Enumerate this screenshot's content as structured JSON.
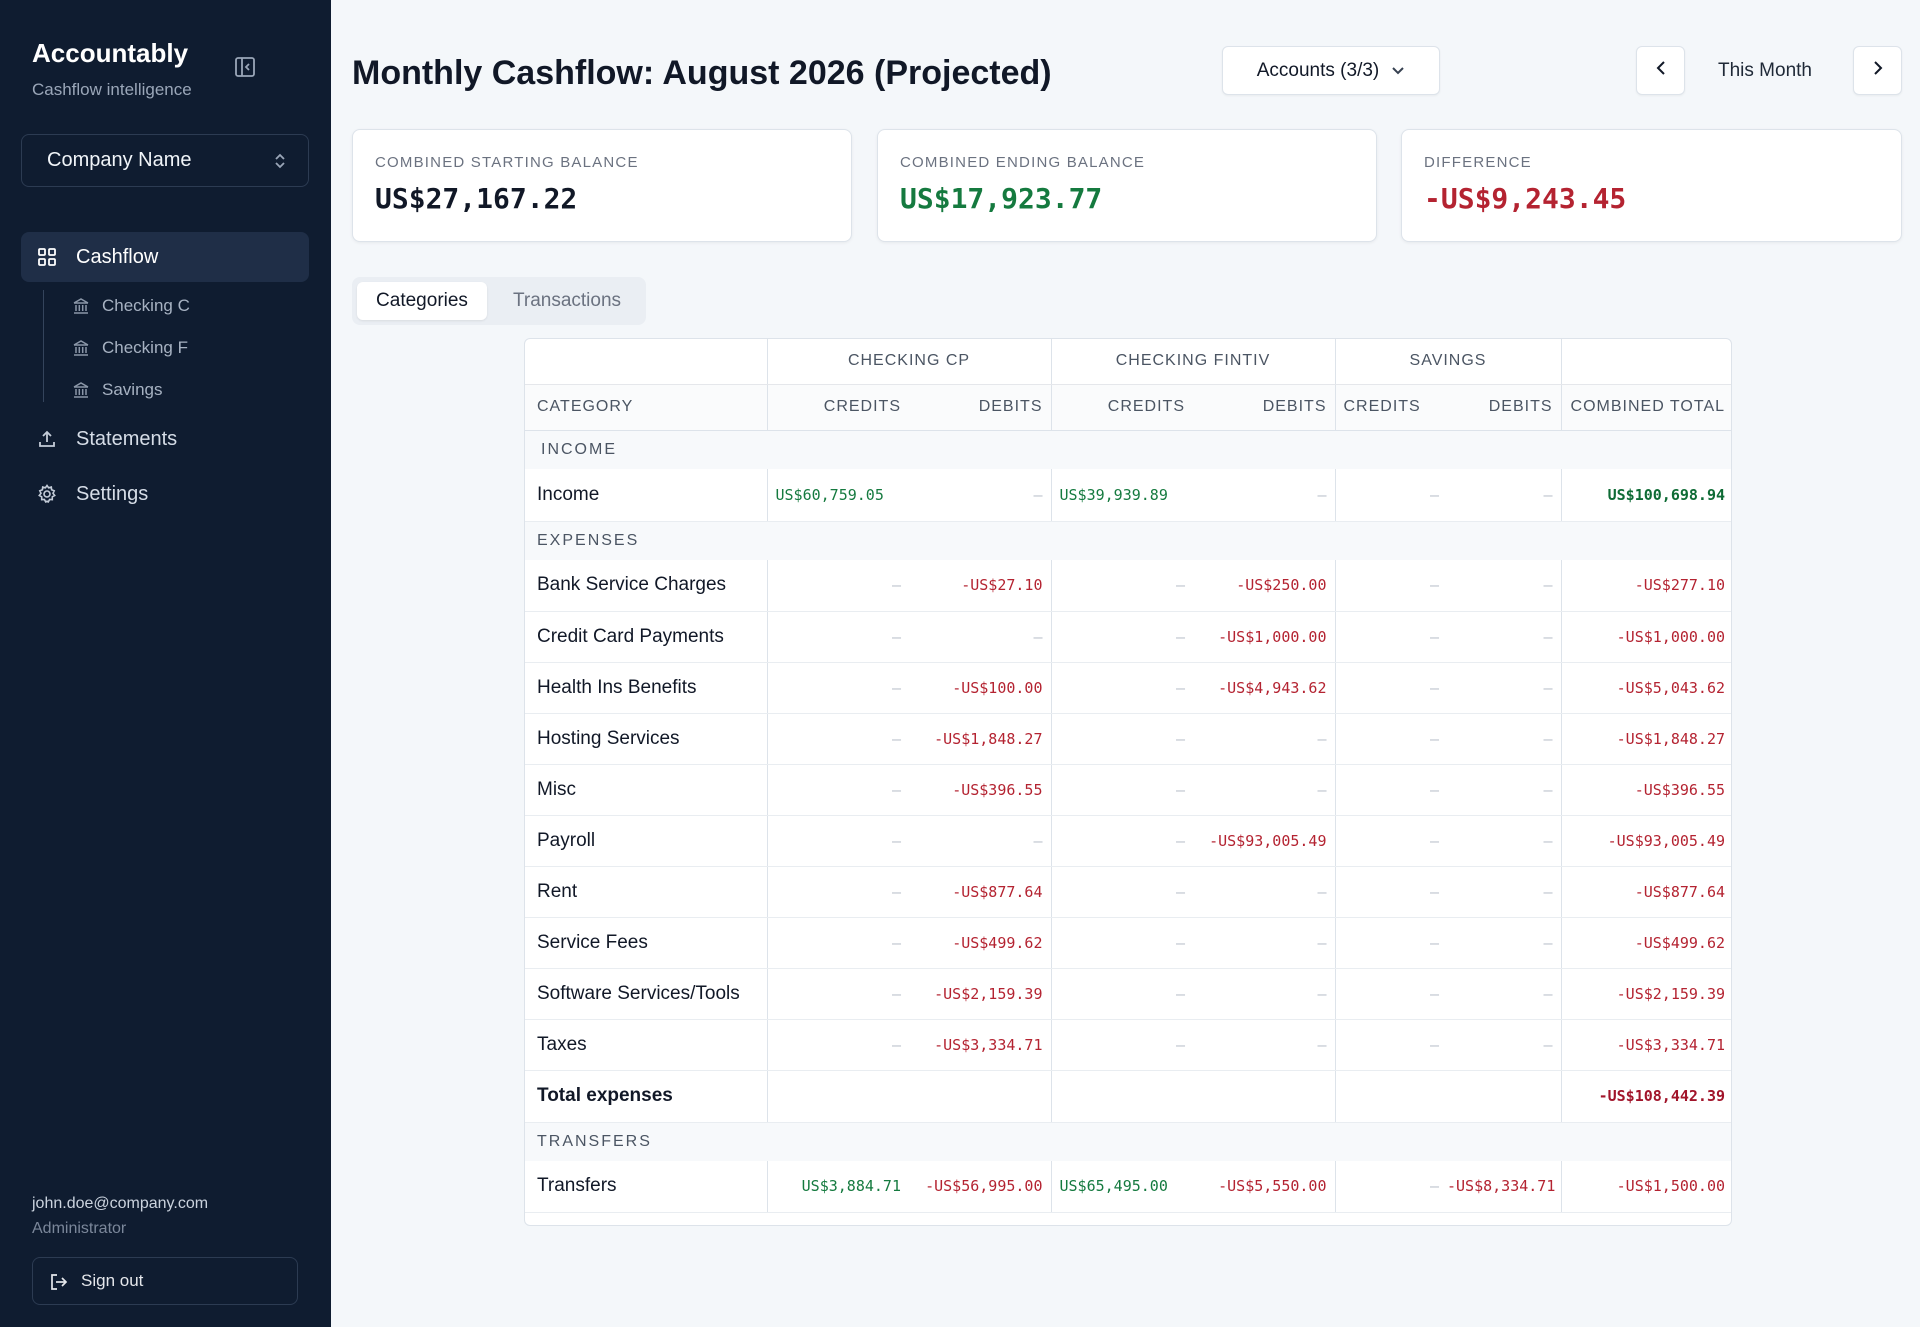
{
  "sidebar": {
    "brand": "Accountably",
    "tagline": "Cashflow intelligence",
    "company": "Company Name",
    "nav": [
      {
        "label": "Cashflow"
      },
      {
        "label": "Statements"
      },
      {
        "label": "Settings"
      }
    ],
    "sub_items": [
      {
        "label": "Checking C"
      },
      {
        "label": "Checking F"
      },
      {
        "label": "Savings"
      }
    ],
    "user_email": "john.doe@company.com",
    "user_role": "Administrator",
    "signout_label": "Sign out"
  },
  "header": {
    "title": "Monthly Cashflow: August 2026 (Projected)",
    "accounts_label": "Accounts (3/3)",
    "month_label": "This Month"
  },
  "cards": [
    {
      "label": "COMBINED STARTING BALANCE",
      "value": "US$27,167.22",
      "color": "#111827"
    },
    {
      "label": "COMBINED ENDING BALANCE",
      "value": "US$17,923.77",
      "color": "#157a3f"
    },
    {
      "label": "DIFFERENCE",
      "value": "-US$9,243.45",
      "color": "#b42331"
    }
  ],
  "tabs": [
    {
      "label": "Categories"
    },
    {
      "label": "Transactions"
    }
  ],
  "table": {
    "groups": [
      "CHECKING CP",
      "CHECKING FINTIV",
      "SAVINGS"
    ],
    "columns": [
      "CATEGORY",
      "CREDITS",
      "DEBITS",
      "CREDITS",
      "DEBITS",
      "CREDITS",
      "DEBITS",
      "COMBINED TOTAL"
    ],
    "sections": {
      "income": "INCOME",
      "expenses": "EXPENSES",
      "transfers": "TRANSFERS"
    },
    "income_row": [
      "Income",
      "US$60,759.05",
      "–",
      "US$39,939.89",
      "–",
      "–",
      "–",
      "US$100,698.94"
    ],
    "expense_rows": [
      [
        "Bank Service Charges",
        "–",
        "-US$27.10",
        "–",
        "-US$250.00",
        "–",
        "–",
        "-US$277.10"
      ],
      [
        "Credit Card Payments",
        "–",
        "–",
        "–",
        "-US$1,000.00",
        "–",
        "–",
        "-US$1,000.00"
      ],
      [
        "Health Ins Benefits",
        "–",
        "-US$100.00",
        "–",
        "-US$4,943.62",
        "–",
        "–",
        "-US$5,043.62"
      ],
      [
        "Hosting Services",
        "–",
        "-US$1,848.27",
        "–",
        "–",
        "–",
        "–",
        "-US$1,848.27"
      ],
      [
        "Misc",
        "–",
        "-US$396.55",
        "–",
        "–",
        "–",
        "–",
        "-US$396.55"
      ],
      [
        "Payroll",
        "–",
        "–",
        "–",
        "-US$93,005.49",
        "–",
        "–",
        "-US$93,005.49"
      ],
      [
        "Rent",
        "–",
        "-US$877.64",
        "–",
        "–",
        "–",
        "–",
        "-US$877.64"
      ],
      [
        "Service Fees",
        "–",
        "-US$499.62",
        "–",
        "–",
        "–",
        "–",
        "-US$499.62"
      ],
      [
        "Software Services/Tools",
        "–",
        "-US$2,159.39",
        "–",
        "–",
        "–",
        "–",
        "-US$2,159.39"
      ],
      [
        "Taxes",
        "–",
        "-US$3,334.71",
        "–",
        "–",
        "–",
        "–",
        "-US$3,334.71"
      ]
    ],
    "total_expenses": {
      "label": "Total expenses",
      "value": "-US$108,442.39"
    },
    "transfers_row": [
      "Transfers",
      "US$3,884.71",
      "-US$56,995.00",
      "US$65,495.00",
      "-US$5,550.00",
      "–",
      "-US$8,334.71",
      "-US$1,500.00"
    ]
  },
  "icons": {
    "collapse": "panel-collapse-icon",
    "company_chevron": "chevron-updown-icon",
    "cashflow": "grid-icon",
    "bank": "bank-icon",
    "statements": "upload-icon",
    "settings": "gear-icon",
    "signout": "sign-out-icon",
    "accounts": "chevron-down-icon",
    "prev": "chevron-left-icon",
    "next": "chevron-right-icon"
  }
}
